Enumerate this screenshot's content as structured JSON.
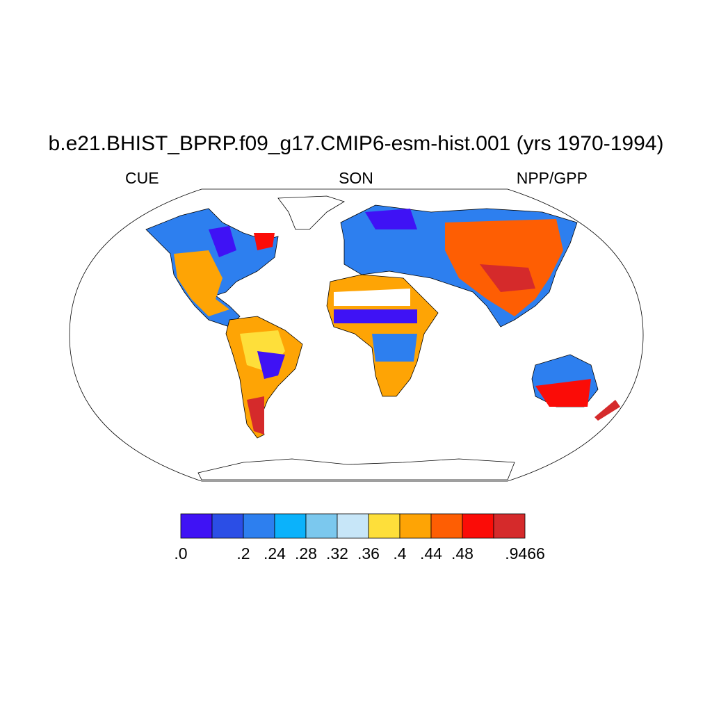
{
  "header": {
    "title": "b.e21.BHIST_BPRP.f09_g17.CMIP6-esm-hist.001 (yrs 1970-1994)",
    "left": "CUE",
    "center": "SON",
    "right": "NPP/GPP"
  },
  "colorbar": {
    "colors": [
      "#3f12f5",
      "#2b4ee6",
      "#2d7fef",
      "#0bb2fb",
      "#7bc8ee",
      "#c7e6f8",
      "#fedf3a",
      "#fea405",
      "#fe5e03",
      "#fb0c07",
      "#d52a2b"
    ],
    "labels": [
      ".0",
      null,
      ".2",
      ".24",
      ".28",
      ".32",
      ".36",
      ".4",
      ".44",
      ".48",
      null,
      ".9466"
    ]
  }
}
